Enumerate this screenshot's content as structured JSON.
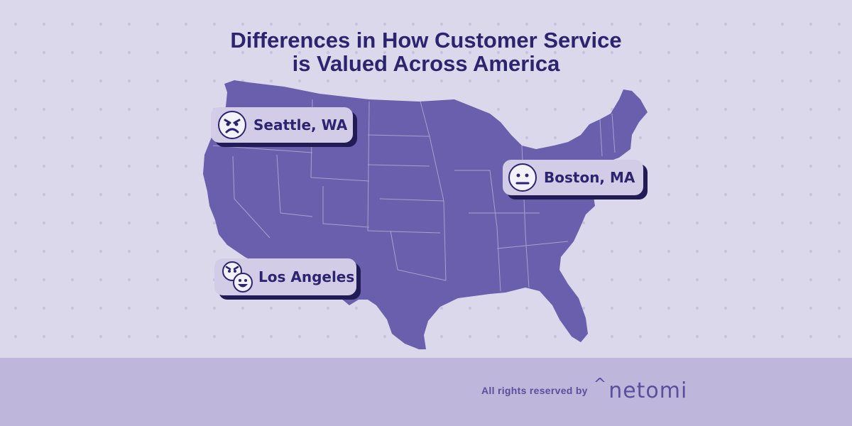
{
  "title": {
    "line1": "Differences in How Customer Service",
    "line2": "is Valued Across America"
  },
  "labels": {
    "seattle": {
      "text": "Seattle, WA",
      "icon": "angry-face-icon"
    },
    "boston": {
      "text": "Boston, MA",
      "icon": "neutral-face-icon"
    },
    "los_angeles": {
      "text": "Los Angeles",
      "icon": "angry-and-happy-faces-icon"
    }
  },
  "footer": {
    "rights_text": "All rights reserved by",
    "brand_mark": "^",
    "brand_name": "netomi"
  },
  "colors": {
    "background": "#dcd8ec",
    "footer_band": "#bfb6db",
    "map_fill": "#6a5fac",
    "title_text": "#2d2470",
    "label_box": "#d2cce6",
    "label_shadow": "#221c56"
  }
}
